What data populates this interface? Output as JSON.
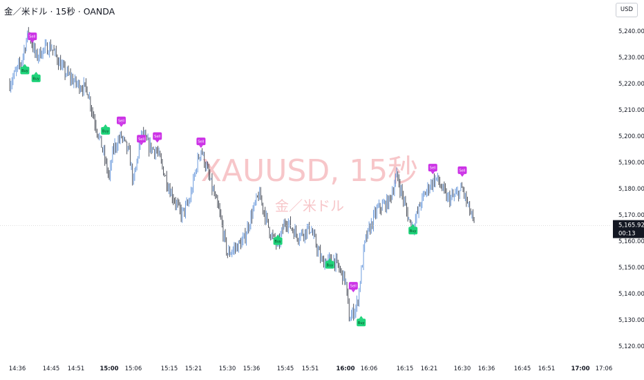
{
  "header": {
    "title": "金／米ドル · 15秒 · OANDA",
    "currency": "USD"
  },
  "watermark": {
    "symbol": "XAUUSD, 15秒",
    "description": "金／米ドル"
  },
  "colors": {
    "up": "#5b8fd9",
    "down": "#3a3f4b",
    "sell": "#cc33e6",
    "buy": "#1fd37a",
    "axis_text": "#131722",
    "last_price_bg": "#131722",
    "last_price_line": "#c9c9c9",
    "watermark": "#f7c6c9"
  },
  "chart_data": {
    "type": "candlestick",
    "symbol": "XAUUSD",
    "interval": "15秒",
    "exchange": "OANDA",
    "ylim": [
      5118,
      5248
    ],
    "y_ticks": [
      "5,120.000",
      "5,130.000",
      "5,140.000",
      "5,150.000",
      "5,160.000",
      "5,170.000",
      "5,180.000",
      "5,190.000",
      "5,200.000",
      "5,210.000",
      "5,220.000",
      "5,230.000",
      "5,240.000"
    ],
    "x_ticks": [
      {
        "label": "14:36",
        "bold": false
      },
      {
        "label": "14:45",
        "bold": false
      },
      {
        "label": "14:51",
        "bold": false
      },
      {
        "label": "15:00",
        "bold": true
      },
      {
        "label": "15:06",
        "bold": false
      },
      {
        "label": "15:15",
        "bold": false
      },
      {
        "label": "15:21",
        "bold": false
      },
      {
        "label": "15:30",
        "bold": false
      },
      {
        "label": "15:36",
        "bold": false
      },
      {
        "label": "15:45",
        "bold": false
      },
      {
        "label": "15:51",
        "bold": false
      },
      {
        "label": "16:00",
        "bold": true
      },
      {
        "label": "16:06",
        "bold": false
      },
      {
        "label": "16:15",
        "bold": false
      },
      {
        "label": "16:21",
        "bold": false
      },
      {
        "label": "16:30",
        "bold": false
      },
      {
        "label": "16:36",
        "bold": false
      },
      {
        "label": "16:45",
        "bold": false
      },
      {
        "label": "16:51",
        "bold": false
      },
      {
        "label": "17:00",
        "bold": true
      },
      {
        "label": "17:06",
        "bold": false
      }
    ],
    "last_price": "5,165.925",
    "countdown": "00:13",
    "close_path": [
      [
        "14:34",
        5220
      ],
      [
        "14:37",
        5228
      ],
      [
        "14:39",
        5240
      ],
      [
        "14:41",
        5230
      ],
      [
        "14:43",
        5233
      ],
      [
        "14:45",
        5234
      ],
      [
        "14:48",
        5225
      ],
      [
        "14:51",
        5220
      ],
      [
        "14:54",
        5218
      ],
      [
        "14:56",
        5206
      ],
      [
        "14:58",
        5196
      ],
      [
        "15:00",
        5184
      ],
      [
        "15:01",
        5195
      ],
      [
        "15:03",
        5200
      ],
      [
        "15:05",
        5193
      ],
      [
        "15:06",
        5182
      ],
      [
        "15:08",
        5201
      ],
      [
        "15:10",
        5196
      ],
      [
        "15:12",
        5194
      ],
      [
        "15:15",
        5180
      ],
      [
        "15:18",
        5170
      ],
      [
        "15:20",
        5175
      ],
      [
        "15:22",
        5190
      ],
      [
        "15:23",
        5195
      ],
      [
        "15:26",
        5180
      ],
      [
        "15:28",
        5170
      ],
      [
        "15:30",
        5155
      ],
      [
        "15:34",
        5160
      ],
      [
        "15:36",
        5170
      ],
      [
        "15:38",
        5178
      ],
      [
        "15:41",
        5163
      ],
      [
        "15:43",
        5158
      ],
      [
        "15:45",
        5168
      ],
      [
        "15:48",
        5162
      ],
      [
        "15:51",
        5165
      ],
      [
        "15:54",
        5152
      ],
      [
        "15:57",
        5153
      ],
      [
        "16:00",
        5145
      ],
      [
        "16:01",
        5130
      ],
      [
        "16:03",
        5136
      ],
      [
        "16:05",
        5160
      ],
      [
        "16:08",
        5172
      ],
      [
        "16:11",
        5175
      ],
      [
        "16:13",
        5185
      ],
      [
        "16:16",
        5168
      ],
      [
        "16:17",
        5165
      ],
      [
        "16:19",
        5175
      ],
      [
        "16:21",
        5181
      ],
      [
        "16:23",
        5184
      ],
      [
        "16:26",
        5176
      ],
      [
        "16:28",
        5177
      ],
      [
        "16:30",
        5180
      ],
      [
        "16:33",
        5166
      ]
    ],
    "signals": [
      {
        "type": "sell",
        "label": "Sell",
        "time": "14:40",
        "price": 5238
      },
      {
        "type": "buy",
        "label": "Buy",
        "time": "14:38",
        "price": 5225
      },
      {
        "type": "buy",
        "label": "Buy",
        "time": "14:41",
        "price": 5222
      },
      {
        "type": "buy",
        "label": "Buy",
        "time": "14:59",
        "price": 5202
      },
      {
        "type": "sell",
        "label": "Sell",
        "time": "15:03",
        "price": 5206
      },
      {
        "type": "sell",
        "label": "Sell",
        "time": "15:08",
        "price": 5199
      },
      {
        "type": "sell",
        "label": "Sell",
        "time": "15:12",
        "price": 5200
      },
      {
        "type": "sell",
        "label": "Sell",
        "time": "15:23",
        "price": 5198
      },
      {
        "type": "buy",
        "label": "Buy",
        "time": "15:43",
        "price": 5160
      },
      {
        "type": "buy",
        "label": "Buy",
        "time": "15:56",
        "price": 5151
      },
      {
        "type": "sell",
        "label": "Sell",
        "time": "16:02",
        "price": 5143
      },
      {
        "type": "buy",
        "label": "Buy",
        "time": "16:04",
        "price": 5129
      },
      {
        "type": "buy",
        "label": "Buy",
        "time": "16:17",
        "price": 5164
      },
      {
        "type": "sell",
        "label": "Sell",
        "time": "16:22",
        "price": 5188
      },
      {
        "type": "sell",
        "label": "Sell",
        "time": "16:30",
        "price": 5187
      }
    ]
  }
}
